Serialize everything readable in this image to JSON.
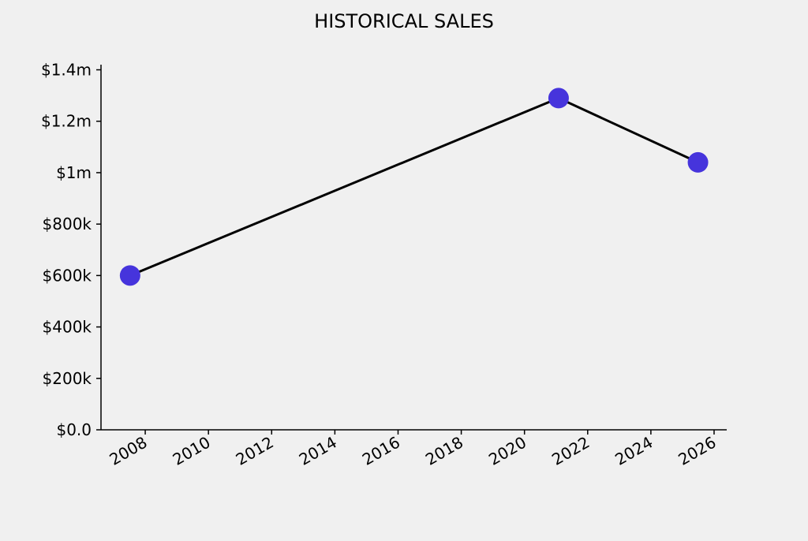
{
  "chart_data": {
    "type": "line",
    "title": "HISTORICAL SALES",
    "xlabel": "",
    "ylabel": "",
    "x": [
      "2007-07",
      "2021-02",
      "2025-07"
    ],
    "x_decimal_years": [
      2007.52,
      2021.08,
      2025.49
    ],
    "values": [
      600000,
      1290000,
      1040000
    ],
    "xlim": [
      2006.6,
      2026.4
    ],
    "ylim": [
      0,
      1420000
    ],
    "x_ticks": [
      2008,
      2010,
      2012,
      2014,
      2016,
      2018,
      2020,
      2022,
      2024,
      2026
    ],
    "x_tick_labels": [
      "2008",
      "2010",
      "2012",
      "2014",
      "2016",
      "2018",
      "2020",
      "2022",
      "2024",
      "2026"
    ],
    "y_ticks": [
      0,
      200000,
      400000,
      600000,
      800000,
      1000000,
      1200000,
      1400000
    ],
    "y_tick_labels": [
      "$0.0",
      "$200k",
      "$400k",
      "$600k",
      "$800k",
      "$1m",
      "$1.2m",
      "$1.4m"
    ],
    "grid": false,
    "legend": "none",
    "colors": {
      "line": "#000000",
      "marker": "#4634dc",
      "background": "#f0f0f0"
    }
  }
}
